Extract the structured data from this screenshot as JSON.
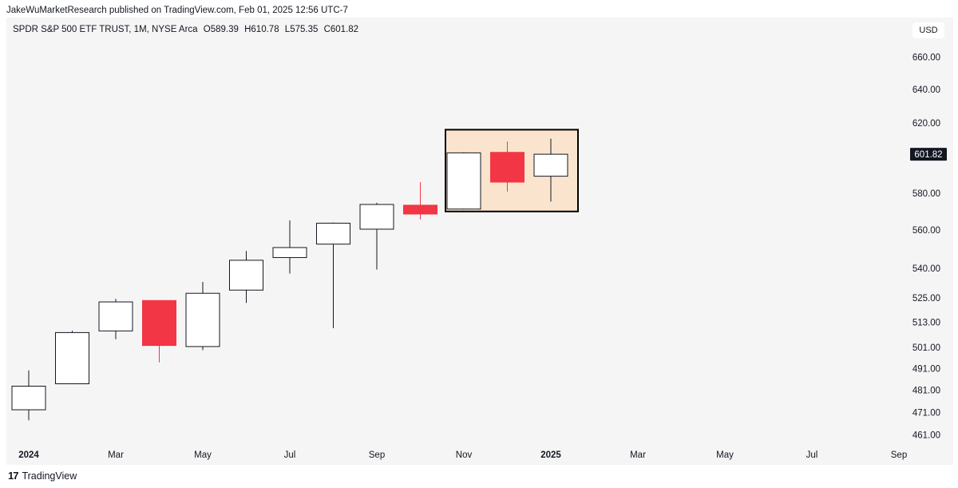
{
  "header": {
    "publisher_line": "JakeWuMarketResearch published on TradingView.com, Feb 01, 2025 12:56 UTC-7"
  },
  "legend": {
    "symbol": "SPDR S&P 500 ETF TRUST, 1M, NYSE Arca",
    "open": "O589.39",
    "high": "H610.78",
    "low": "L575.35",
    "close": "C601.82"
  },
  "currency": "USD",
  "footer": {
    "logo_glyph": "17",
    "brand": "TradingView"
  },
  "colors": {
    "up_fill": "#ffffff",
    "down_fill": "#f23645",
    "outline": "#131722",
    "highlight_fill": "#fbe4cd",
    "highlight_border": "#000000",
    "last_price_bg": "#131722"
  },
  "chart_data": {
    "type": "candlestick",
    "title": "SPDR S&P 500 ETF TRUST, 1M, NYSE Arca",
    "scale": "log",
    "ylim": [
      455,
      680
    ],
    "y_ticks": [
      461,
      471,
      481,
      491,
      501,
      513,
      525,
      540,
      560,
      580,
      620,
      640,
      660
    ],
    "y_tick_labels": [
      "461.00",
      "471.00",
      "481.00",
      "491.00",
      "501.00",
      "513.00",
      "525.00",
      "540.00",
      "560.00",
      "580.00",
      "620.00",
      "640.00",
      "660.00"
    ],
    "x_ticks": [
      {
        "month": "2024-01",
        "label": "2024",
        "bold": true
      },
      {
        "month": "2024-03",
        "label": "Mar"
      },
      {
        "month": "2024-05",
        "label": "May"
      },
      {
        "month": "2024-07",
        "label": "Jul"
      },
      {
        "month": "2024-09",
        "label": "Sep"
      },
      {
        "month": "2024-11",
        "label": "Nov"
      },
      {
        "month": "2025-01",
        "label": "2025",
        "bold": true
      },
      {
        "month": "2025-03",
        "label": "Mar"
      },
      {
        "month": "2025-05",
        "label": "May"
      },
      {
        "month": "2025-07",
        "label": "Jul"
      },
      {
        "month": "2025-09",
        "label": "Sep"
      }
    ],
    "last_price": 601.82,
    "last_price_label": "601.82",
    "candles": [
      {
        "month": "2024-01",
        "open": 472.2,
        "high": 490.2,
        "low": 467.5,
        "close": 482.9
      },
      {
        "month": "2024-02",
        "open": 484.0,
        "high": 509.0,
        "low": 483.8,
        "close": 508.1
      },
      {
        "month": "2024-03",
        "open": 508.9,
        "high": 524.6,
        "low": 504.9,
        "close": 523.1
      },
      {
        "month": "2024-04",
        "open": 523.8,
        "high": 523.8,
        "low": 493.9,
        "close": 501.9
      },
      {
        "month": "2024-05",
        "open": 501.4,
        "high": 533.1,
        "low": 499.7,
        "close": 527.4
      },
      {
        "month": "2024-06",
        "open": 529.0,
        "high": 549.0,
        "low": 522.6,
        "close": 544.2
      },
      {
        "month": "2024-07",
        "open": 545.6,
        "high": 565.2,
        "low": 537.4,
        "close": 550.8
      },
      {
        "month": "2024-08",
        "open": 552.6,
        "high": 564.1,
        "low": 510.3,
        "close": 563.7
      },
      {
        "month": "2024-09",
        "open": 560.5,
        "high": 574.7,
        "low": 539.4,
        "close": 573.8
      },
      {
        "month": "2024-10",
        "open": 573.4,
        "high": 586.1,
        "low": 565.7,
        "close": 568.6
      },
      {
        "month": "2024-11",
        "open": 571.3,
        "high": 603.0,
        "low": 571.0,
        "close": 602.6
      },
      {
        "month": "2024-12",
        "open": 602.9,
        "high": 609.1,
        "low": 580.9,
        "close": 586.1
      },
      {
        "month": "2025-01",
        "open": 589.39,
        "high": 610.78,
        "low": 575.35,
        "close": 601.82
      }
    ],
    "highlight": {
      "from_month": "2024-11",
      "to_month": "2025-01",
      "high": 616.0,
      "low": 570.0
    }
  }
}
